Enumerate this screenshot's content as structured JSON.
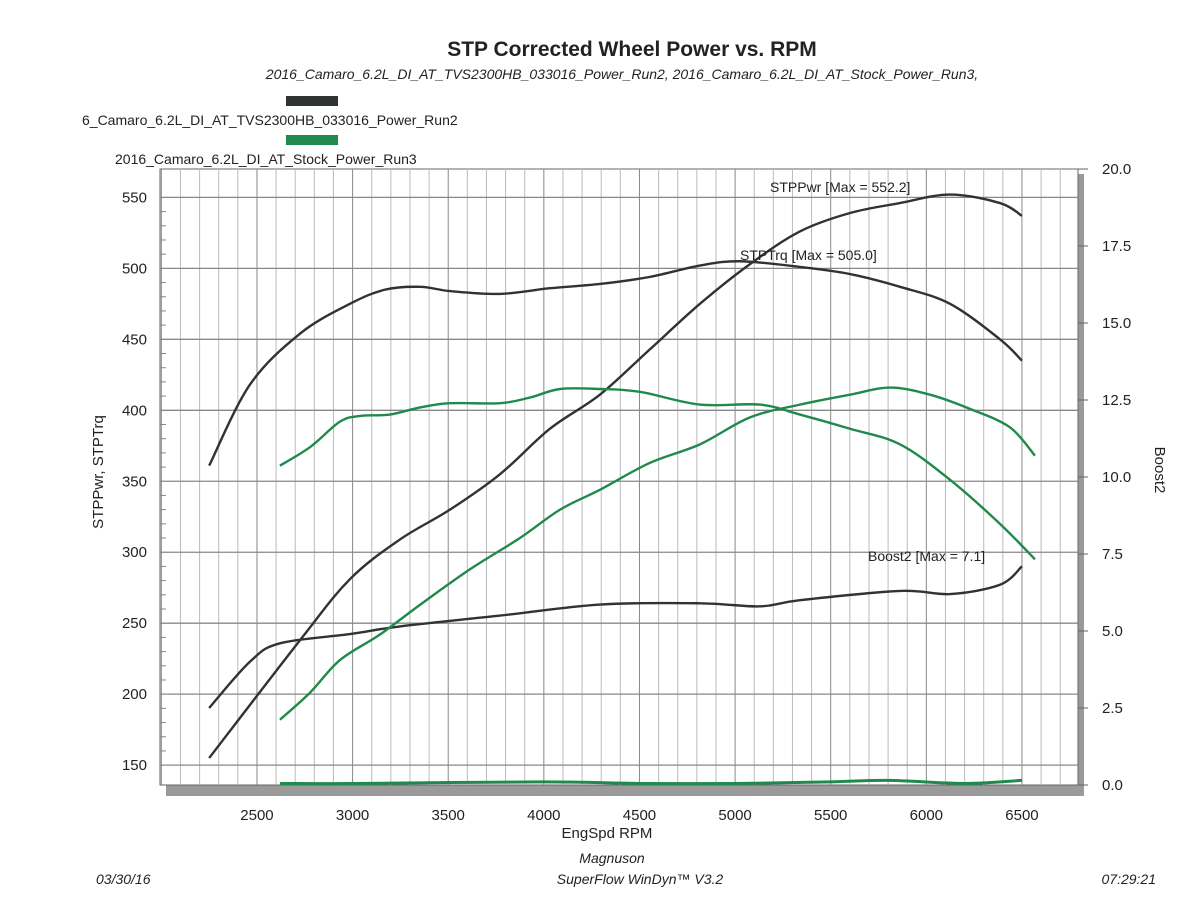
{
  "chart_data": {
    "type": "line",
    "title": "STP Corrected Wheel Power vs. RPM",
    "subtitle": "2016_Camaro_6.2L_DI_AT_TVS2300HB_033016_Power_Run2, 2016_Camaro_6.2L_DI_AT_Stock_Power_Run3,",
    "legend": [
      {
        "name": "6_Camaro_6.2L_DI_AT_TVS2300HB_033016_Power_Run2",
        "color": "#2f3432"
      },
      {
        "name": "2016_Camaro_6.2L_DI_AT_Stock_Power_Run3",
        "color": "#1f8a4c"
      }
    ],
    "legend_placement": "top-left",
    "xlabel": "EngSpd RPM",
    "ylabel": "STPPwr, STPTrq",
    "y2label": "Boost2",
    "xlim": [
      1993,
      6793
    ],
    "ylim": [
      136,
      570
    ],
    "y2lim": [
      0,
      20
    ],
    "xticks": [
      "2500",
      "3000",
      "3500",
      "4000",
      "4500",
      "5000",
      "5500",
      "6000",
      "6500"
    ],
    "yticks": [
      "150",
      "200",
      "250",
      "300",
      "350",
      "400",
      "450",
      "500",
      "550"
    ],
    "y2ticks": [
      "0.0",
      "2.5",
      "5.0",
      "7.5",
      "10.0",
      "12.5",
      "15.0",
      "17.5",
      "20.0"
    ],
    "grid": true,
    "annotations": [
      "STPPwr [Max = 552.2]",
      "STPTrq [Max = 505.0]",
      "Boost2 [Max = 7.1]"
    ],
    "series": [
      {
        "run": 0,
        "axis": "left",
        "color": "#2f3432",
        "x": [
          2250,
          2725,
          2986,
          3248,
          3509,
          3771,
          4032,
          4293,
          4555,
          4816,
          5078,
          5339,
          5601,
          5862,
          6124,
          6385,
          6500
        ],
        "y": [
          155,
          238,
          281,
          309,
          330,
          355,
          387,
          411,
          443,
          475,
          503,
          526,
          539,
          546,
          552,
          546,
          537
        ]
      },
      {
        "run": 0,
        "axis": "left",
        "color": "#2f3432",
        "x": [
          2250,
          2463,
          2725,
          2986,
          3170,
          3353,
          3509,
          3771,
          4032,
          4293,
          4555,
          4816,
          5025,
          5339,
          5601,
          5862,
          6124,
          6385,
          6500
        ],
        "y": [
          361,
          418,
          454,
          475,
          485,
          487,
          484,
          482,
          486,
          489,
          494,
          502,
          505,
          501,
          496,
          487,
          475,
          450,
          435
        ]
      },
      {
        "run": 0,
        "axis": "right",
        "color": "#2f3432",
        "x": [
          2250,
          2463,
          2620,
          2986,
          3248,
          3771,
          4293,
          4816,
          5130,
          5339,
          5862,
          6124,
          6385,
          6500
        ],
        "y": [
          2.5,
          4.0,
          4.6,
          4.9,
          5.15,
          5.5,
          5.86,
          5.9,
          5.8,
          6.0,
          6.3,
          6.2,
          6.5,
          7.1
        ]
      },
      {
        "run": 1,
        "axis": "left",
        "color": "#1f8a4c",
        "x": [
          2620,
          2777,
          2934,
          3039,
          3195,
          3353,
          3509,
          3771,
          3928,
          4085,
          4293,
          4502,
          4816,
          5130,
          5339,
          5601,
          5862,
          6124,
          6385,
          6568
        ],
        "y": [
          361,
          374,
          392,
          396,
          397,
          402,
          405,
          405,
          409,
          415,
          415,
          413,
          404,
          404,
          397,
          387,
          376,
          351,
          320,
          295
        ]
      },
      {
        "run": 1,
        "axis": "left",
        "color": "#1f8a4c",
        "x": [
          2620,
          2777,
          2934,
          3143,
          3353,
          3614,
          3875,
          4085,
          4293,
          4555,
          4816,
          5078,
          5339,
          5601,
          5810,
          6019,
          6228,
          6437,
          6568
        ],
        "y": [
          182,
          201,
          224,
          242,
          263,
          288,
          310,
          330,
          344,
          363,
          376,
          395,
          404,
          411,
          416,
          411,
          401,
          388,
          368
        ]
      },
      {
        "run": 1,
        "axis": "right",
        "color": "#1f8a4c",
        "x": [
          2620,
          3000,
          4000,
          4500,
          5000,
          5500,
          5800,
          6200,
          6500
        ],
        "y": [
          0.05,
          0.05,
          0.1,
          0.05,
          0.05,
          0.1,
          0.15,
          0.05,
          0.15
        ]
      }
    ]
  },
  "footer": {
    "date": "03/30/16",
    "company": "Magnuson",
    "software": "SuperFlow WinDyn™ V3.2",
    "time": "07:29:21"
  }
}
